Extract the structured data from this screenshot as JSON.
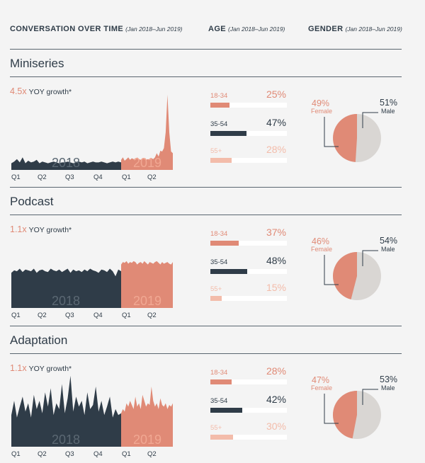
{
  "header": {
    "col1_title": "CONVERSATION OVER TIME",
    "col1_sub": "(Jan 2018–Jun 2019)",
    "col2_title": "AGE",
    "col2_sub": "(Jan 2018–Jun 2019)",
    "col3_title": "GENDER",
    "col3_sub": "(Jan 2018–Jun 2019)"
  },
  "colors": {
    "dark": "#2f3c48",
    "salmon": "#e08a76",
    "peach": "#f3bcaa",
    "grey": "#d9d6d3",
    "bg": "#f4f4f4"
  },
  "chart_data": [
    {
      "type": "area",
      "title": "Miniseries",
      "growth_value": "4.5x",
      "growth_label": "YOY growth*",
      "year_labels": [
        "2018",
        "2019"
      ],
      "x_tick_labels": [
        "Q1",
        "Q2",
        "Q3",
        "Q4",
        "Q1",
        "Q2"
      ],
      "series": [
        {
          "name": "2018",
          "values": [
            8,
            10,
            13,
            9,
            15,
            8,
            11,
            9,
            10,
            12,
            8,
            10,
            9,
            8,
            9,
            10,
            9,
            8,
            9,
            9,
            10,
            9,
            8,
            9,
            10,
            9,
            10,
            8,
            9,
            10,
            9,
            9,
            10,
            9,
            8,
            9,
            10,
            9,
            10,
            9
          ]
        },
        {
          "name": "2019",
          "values": [
            12,
            15,
            11,
            13,
            15,
            12,
            14,
            13,
            12,
            15,
            13,
            12,
            14,
            13,
            12,
            13,
            12,
            14,
            13,
            15,
            20,
            16,
            23,
            22,
            26,
            45,
            90,
            45,
            22,
            20
          ]
        }
      ],
      "ylim": [
        0,
        100
      ],
      "age": {
        "groups": [
          {
            "label": "18-34",
            "pct_text": "25%",
            "value": 25
          },
          {
            "label": "35-54",
            "pct_text": "47%",
            "value": 47
          },
          {
            "label": "55+",
            "pct_text": "28%",
            "value": 28
          }
        ]
      },
      "gender": {
        "female": {
          "label": "Female",
          "pct_text": "49%",
          "value": 49
        },
        "male": {
          "label": "Male",
          "pct_text": "51%",
          "value": 51
        }
      }
    },
    {
      "type": "area",
      "title": "Podcast",
      "growth_value": "1.1x",
      "growth_label": "YOY growth*",
      "year_labels": [
        "2018",
        "2019"
      ],
      "x_tick_labels": [
        "Q1",
        "Q2",
        "Q3",
        "Q4",
        "Q1",
        "Q2"
      ],
      "series": [
        {
          "name": "2018",
          "values": [
            42,
            45,
            44,
            47,
            43,
            46,
            45,
            44,
            47,
            42,
            45,
            46,
            44,
            43,
            47,
            45,
            44,
            46,
            43,
            45,
            47,
            42,
            46,
            44,
            45,
            43,
            46,
            44,
            47,
            45,
            44,
            42,
            46,
            45,
            43,
            47,
            44,
            38,
            46,
            44
          ]
        },
        {
          "name": "2019",
          "values": [
            52,
            55,
            54,
            56,
            53,
            55,
            54,
            56,
            55,
            52,
            54,
            55,
            53,
            56,
            54,
            52,
            55,
            54,
            53,
            55,
            56,
            54,
            52,
            55,
            53,
            54,
            55,
            53,
            52,
            55
          ]
        }
      ],
      "ylim": [
        0,
        100
      ],
      "age": {
        "groups": [
          {
            "label": "18-34",
            "pct_text": "37%",
            "value": 37
          },
          {
            "label": "35-54",
            "pct_text": "48%",
            "value": 48
          },
          {
            "label": "55+",
            "pct_text": "15%",
            "value": 15
          }
        ]
      },
      "gender": {
        "female": {
          "label": "Female",
          "pct_text": "46%",
          "value": 46
        },
        "male": {
          "label": "Male",
          "pct_text": "54%",
          "value": 54
        }
      }
    },
    {
      "type": "area",
      "title": "Adaptation",
      "growth_value": "1.1x",
      "growth_label": "YOY growth*",
      "year_labels": [
        "2018",
        "2019"
      ],
      "x_tick_labels": [
        "Q1",
        "Q2",
        "Q3",
        "Q4",
        "Q1",
        "Q2"
      ],
      "series": [
        {
          "name": "2018",
          "values": [
            38,
            55,
            35,
            48,
            60,
            42,
            52,
            35,
            62,
            45,
            55,
            40,
            65,
            48,
            70,
            38,
            52,
            45,
            75,
            40,
            58,
            85,
            42,
            60,
            48,
            55,
            38,
            65,
            45,
            50,
            72,
            42,
            55,
            38,
            48,
            60,
            35,
            45,
            38,
            40
          ]
        },
        {
          "name": "2019",
          "values": [
            40,
            45,
            42,
            52,
            48,
            55,
            50,
            45,
            60,
            48,
            52,
            45,
            62,
            55,
            48,
            52,
            50,
            72,
            55,
            48,
            52,
            45,
            58,
            50,
            48,
            52,
            45,
            50,
            48,
            52
          ]
        }
      ],
      "ylim": [
        0,
        100
      ],
      "age": {
        "groups": [
          {
            "label": "18-34",
            "pct_text": "28%",
            "value": 28
          },
          {
            "label": "35-54",
            "pct_text": "42%",
            "value": 42
          },
          {
            "label": "55+",
            "pct_text": "30%",
            "value": 30
          }
        ]
      },
      "gender": {
        "female": {
          "label": "Female",
          "pct_text": "47%",
          "value": 47
        },
        "male": {
          "label": "Male",
          "pct_text": "53%",
          "value": 53
        }
      }
    }
  ]
}
